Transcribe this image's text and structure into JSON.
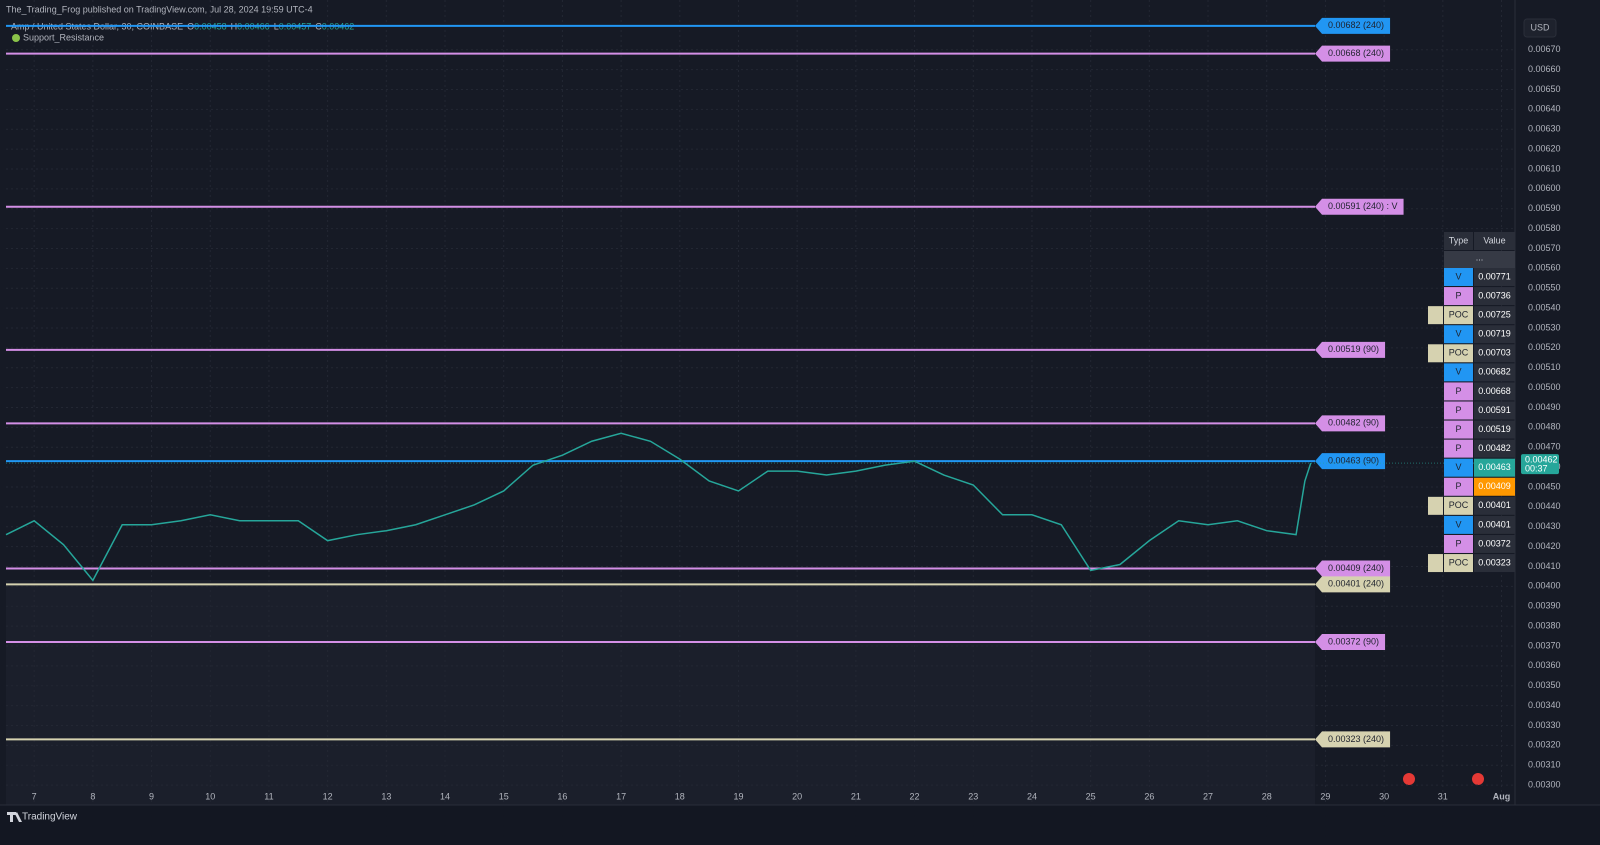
{
  "header": {
    "publisher": "The_Trading_Frog published on TradingView.com, Jul 28, 2024 19:59 UTC-4",
    "footer": "TradingView",
    "currency": "USD"
  },
  "legend": {
    "ohlc": [
      {
        "label": "O",
        "value": 0.00458
      },
      {
        "label": "H",
        "value": 0.00466
      },
      {
        "label": "L",
        "value": 0.00457
      },
      {
        "label": "C",
        "value": 0.00462
      }
    ],
    "indicator": "Support_Resistance"
  },
  "chart_data": {
    "type": "line",
    "x": [
      6.52,
      7,
      7.5,
      8,
      8.5,
      9,
      9.5,
      10,
      10.5,
      11,
      11.5,
      12,
      12.5,
      13,
      13.5,
      14,
      14.5,
      15,
      15.5,
      16,
      16.5,
      17,
      17.5,
      18,
      18.5,
      19,
      19.5,
      20,
      20.5,
      21,
      21.5,
      22,
      22.5,
      23,
      23.5,
      24,
      24.5,
      25,
      25.5,
      26,
      26.5,
      27,
      27.5,
      28,
      28.5,
      28.65,
      28.75
    ],
    "series": [
      {
        "name": "Amp / United States Dollar, 30, COINBASE",
        "color": "#26a69a",
        "values": [
          0.00426,
          0.00433,
          0.00421,
          0.00403,
          0.00431,
          0.00431,
          0.00433,
          0.00436,
          0.00433,
          0.00433,
          0.00433,
          0.00423,
          0.00426,
          0.00428,
          0.00431,
          0.00436,
          0.00441,
          0.00448,
          0.00461,
          0.00466,
          0.00473,
          0.00477,
          0.00473,
          0.00464,
          0.00453,
          0.00448,
          0.00458,
          0.00458,
          0.00456,
          0.00458,
          0.00461,
          0.00463,
          0.00456,
          0.00451,
          0.00436,
          0.00436,
          0.00431,
          0.00408,
          0.00411,
          0.00423,
          0.00433,
          0.00431,
          0.00433,
          0.00428,
          0.00426,
          0.00453,
          0.00462
        ]
      }
    ],
    "last_price": {
      "value": 0.00462,
      "countdown": "00:37",
      "color": "#26a69a"
    },
    "levels": [
      {
        "value": 0.00682,
        "label": "0.00682 (240)",
        "color": "#2196f3"
      },
      {
        "value": 0.00668,
        "label": "0.00668 (240)",
        "color": "#d48fe6"
      },
      {
        "value": 0.00591,
        "label": "0.00591 (240)  : V",
        "color": "#d48fe6"
      },
      {
        "value": 0.00519,
        "label": "0.00519 (90)",
        "color": "#d48fe6"
      },
      {
        "value": 0.00482,
        "label": "0.00482 (90)",
        "color": "#d48fe6"
      },
      {
        "value": 0.00463,
        "label": "0.00463 (90)",
        "color": "#2196f3"
      },
      {
        "value": 0.00409,
        "label": "0.00409 (240)",
        "color": "#d48fe6"
      },
      {
        "value": 0.00401,
        "label": "0.00401 (240)",
        "color": "#d6d2b0"
      },
      {
        "value": 0.00372,
        "label": "0.00372 (90)",
        "color": "#d48fe6"
      },
      {
        "value": 0.00323,
        "label": "0.00323 (240)",
        "color": "#d6d2b0"
      }
    ],
    "xlim": [
      6.52,
      32.23
    ],
    "xticks": [
      7,
      8,
      9,
      10,
      11,
      12,
      13,
      14,
      15,
      16,
      17,
      18,
      19,
      20,
      21,
      22,
      23,
      24,
      25,
      26,
      27,
      28,
      29,
      30,
      31,
      {
        "value": 32,
        "label": "Aug"
      }
    ],
    "ylim": [
      0.0029,
      0.00695
    ],
    "yticks": [
      {
        "value": 0.003,
        "label": "0.00300"
      },
      {
        "value": 0.0031,
        "label": "0.00310"
      },
      {
        "value": 0.0032,
        "label": "0.00320"
      },
      {
        "value": 0.0033,
        "label": "0.00330"
      },
      {
        "value": 0.0034,
        "label": "0.00340"
      },
      {
        "value": 0.0035,
        "label": "0.00350"
      },
      {
        "value": 0.0036,
        "label": "0.00360"
      },
      {
        "value": 0.0037,
        "label": "0.00370"
      },
      {
        "value": 0.0038,
        "label": "0.00380"
      },
      {
        "value": 0.0039,
        "label": "0.00390"
      },
      {
        "value": 0.004,
        "label": "0.00400"
      },
      {
        "value": 0.0041,
        "label": "0.00410"
      },
      {
        "value": 0.0042,
        "label": "0.00420"
      },
      {
        "value": 0.0043,
        "label": "0.00430"
      },
      {
        "value": 0.0044,
        "label": "0.00440"
      },
      {
        "value": 0.0045,
        "label": "0.00450"
      },
      {
        "value": 0.0046,
        "label": "0.00460"
      },
      {
        "value": 0.0047,
        "label": "0.00470"
      },
      {
        "value": 0.0048,
        "label": "0.00480"
      },
      {
        "value": 0.0049,
        "label": "0.00490"
      },
      {
        "value": 0.005,
        "label": "0.00500"
      },
      {
        "value": 0.0051,
        "label": "0.00510"
      },
      {
        "value": 0.0052,
        "label": "0.00520"
      },
      {
        "value": 0.0053,
        "label": "0.00530"
      },
      {
        "value": 0.0054,
        "label": "0.00540"
      },
      {
        "value": 0.0055,
        "label": "0.00550"
      },
      {
        "value": 0.0056,
        "label": "0.00560"
      },
      {
        "value": 0.0057,
        "label": "0.00570"
      },
      {
        "value": 0.0058,
        "label": "0.00580"
      },
      {
        "value": 0.0059,
        "label": "0.00590"
      },
      {
        "value": 0.006,
        "label": "0.00600"
      },
      {
        "value": 0.0061,
        "label": "0.00610"
      },
      {
        "value": 0.0062,
        "label": "0.00620"
      },
      {
        "value": 0.0063,
        "label": "0.00630"
      },
      {
        "value": 0.0064,
        "label": "0.00640"
      },
      {
        "value": 0.0065,
        "label": "0.00650"
      },
      {
        "value": 0.0066,
        "label": "0.00660"
      },
      {
        "value": 0.0067,
        "label": "0.00670"
      }
    ],
    "grid": true
  },
  "table": {
    "columns": [
      "Type",
      "Value"
    ],
    "placeholder": "...",
    "rows": [
      {
        "type": "V",
        "value": 0.00771,
        "color": "#2196f3"
      },
      {
        "type": "P",
        "value": 0.00736,
        "color": "#d48fe6"
      },
      {
        "type": "POC",
        "value": 0.00725,
        "color": "#d6d2b0"
      },
      {
        "type": "V",
        "value": 0.00719,
        "color": "#2196f3"
      },
      {
        "type": "POC",
        "value": 0.00703,
        "color": "#d6d2b0"
      },
      {
        "type": "V",
        "value": 0.00682,
        "color": "#2196f3"
      },
      {
        "type": "P",
        "value": 0.00668,
        "color": "#d48fe6"
      },
      {
        "type": "P",
        "value": 0.00591,
        "color": "#d48fe6"
      },
      {
        "type": "P",
        "value": 0.00519,
        "color": "#d48fe6"
      },
      {
        "type": "P",
        "value": 0.00482,
        "color": "#d48fe6"
      },
      {
        "type": "V",
        "value": 0.00463,
        "color": "#2196f3",
        "highlight": "#26a69a"
      },
      {
        "type": "P",
        "value": 0.00409,
        "color": "#d48fe6",
        "highlight": "#ff9800"
      },
      {
        "type": "POC",
        "value": 0.00401,
        "color": "#d6d2b0"
      },
      {
        "type": "V",
        "value": 0.00401,
        "color": "#2196f3"
      },
      {
        "type": "P",
        "value": 0.00372,
        "color": "#d48fe6"
      },
      {
        "type": "POC",
        "value": 0.00323,
        "color": "#d6d2b0"
      }
    ]
  }
}
